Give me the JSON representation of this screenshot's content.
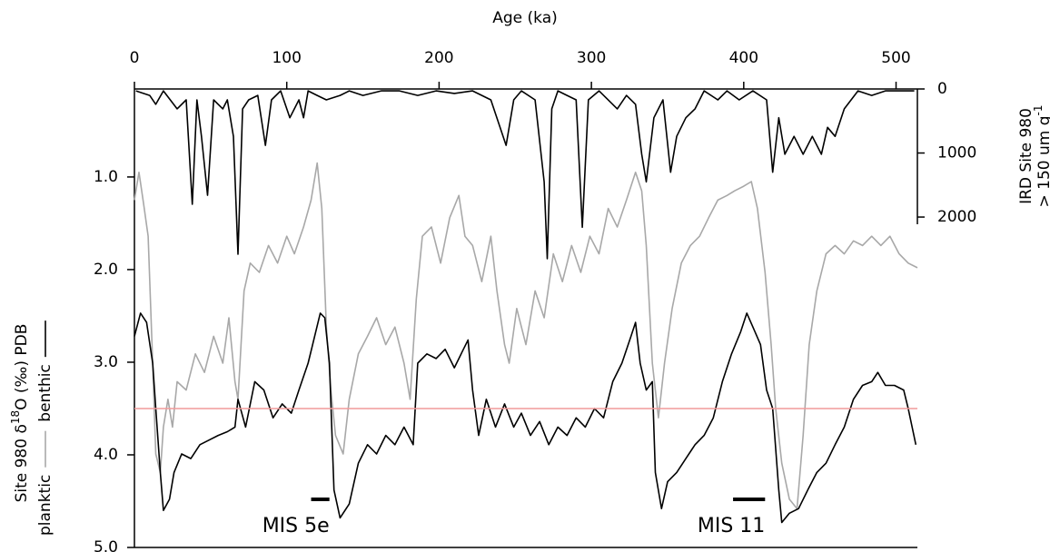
{
  "chart_data": {
    "type": "line",
    "x_label": "Age (ka)",
    "y_label": [
      "Site 980 δ",
      "18",
      "O (‰) PDB"
    ],
    "y2_label": [
      "IRD Site 980",
      "> 150 um g",
      "-1"
    ],
    "xlim": [
      0,
      514
    ],
    "xticks": [
      0,
      100,
      200,
      300,
      400,
      500
    ],
    "ylim": [
      0.05,
      5.0
    ],
    "y_inverted": true,
    "yticks": [
      {
        "value": 1,
        "label": "1.0"
      },
      {
        "value": 2,
        "label": "2.0"
      },
      {
        "value": 3,
        "label": "3.0"
      },
      {
        "value": 4,
        "label": "4.0"
      },
      {
        "value": 5,
        "label": "5.0"
      }
    ],
    "y2lim": [
      0,
      7160
    ],
    "y2_inverted": true,
    "y2ticks": [
      0,
      1000,
      2000
    ],
    "hline": {
      "value": 3.5,
      "color": "#f19a9a"
    },
    "series": [
      {
        "name": "planktic",
        "color": "#a8a8a8",
        "legend": true,
        "x": [
          0,
          3,
          6,
          9,
          12,
          14,
          17,
          19,
          22,
          25,
          28,
          34,
          40,
          46,
          52,
          58,
          62,
          66,
          68,
          72,
          76,
          82,
          88,
          94,
          100,
          105,
          111,
          116,
          120,
          123,
          126,
          129,
          132,
          137,
          141,
          147,
          153,
          159,
          165,
          171,
          177,
          181,
          185,
          189,
          195,
          201,
          207,
          213,
          217,
          222,
          228,
          234,
          238,
          243,
          246,
          251,
          257,
          263,
          269,
          275,
          281,
          287,
          293,
          299,
          305,
          311,
          317,
          323,
          329,
          333,
          336,
          340,
          344,
          348,
          353,
          359,
          365,
          371,
          377,
          383,
          389,
          394,
          400,
          405,
          409,
          414,
          418,
          421,
          425,
          430,
          435,
          439,
          443,
          448,
          454,
          460,
          466,
          472,
          478,
          484,
          490,
          496,
          502,
          508,
          514
        ],
        "values": [
          1.25,
          0.95,
          1.29,
          1.64,
          3.01,
          3.99,
          4.19,
          3.7,
          3.4,
          3.7,
          3.21,
          3.3,
          2.91,
          3.11,
          2.72,
          3.01,
          2.52,
          3.21,
          3.4,
          2.23,
          1.93,
          2.03,
          1.74,
          1.93,
          1.64,
          1.83,
          1.54,
          1.25,
          0.85,
          1.34,
          2.62,
          3.3,
          3.79,
          3.99,
          3.4,
          2.91,
          2.72,
          2.52,
          2.81,
          2.62,
          3.01,
          3.4,
          2.32,
          1.64,
          1.54,
          1.93,
          1.44,
          1.2,
          1.64,
          1.74,
          2.13,
          1.64,
          2.23,
          2.81,
          3.01,
          2.42,
          2.81,
          2.23,
          2.52,
          1.83,
          2.13,
          1.74,
          2.03,
          1.64,
          1.83,
          1.34,
          1.54,
          1.25,
          0.95,
          1.15,
          1.74,
          3.01,
          3.6,
          3.01,
          2.42,
          1.93,
          1.74,
          1.64,
          1.44,
          1.25,
          1.2,
          1.15,
          1.1,
          1.05,
          1.34,
          2.03,
          2.81,
          3.5,
          4.09,
          4.48,
          4.58,
          3.79,
          2.81,
          2.23,
          1.83,
          1.74,
          1.83,
          1.69,
          1.74,
          1.64,
          1.74,
          1.64,
          1.83,
          1.93,
          1.98
        ]
      },
      {
        "name": "benthic",
        "color": "#000000",
        "legend": true,
        "x": [
          0,
          4,
          8,
          12,
          14,
          17,
          19,
          23,
          26,
          31,
          37,
          43,
          49,
          55,
          61,
          66,
          68,
          73,
          79,
          85,
          91,
          97,
          103,
          108,
          114,
          117,
          122,
          125,
          128,
          131,
          135,
          141,
          147,
          153,
          159,
          165,
          171,
          177,
          183,
          186,
          192,
          198,
          204,
          210,
          216,
          219,
          222,
          226,
          231,
          237,
          243,
          249,
          254,
          260,
          266,
          272,
          278,
          284,
          290,
          296,
          302,
          308,
          314,
          320,
          326,
          329,
          332,
          336,
          340,
          342,
          346,
          350,
          356,
          362,
          368,
          374,
          380,
          386,
          392,
          398,
          402,
          406,
          411,
          415,
          419,
          423,
          425,
          430,
          436,
          442,
          448,
          454,
          460,
          466,
          472,
          478,
          484,
          488,
          493,
          499,
          505,
          508,
          513
        ],
        "values": [
          2.72,
          2.47,
          2.57,
          3.01,
          3.5,
          4.19,
          4.6,
          4.48,
          4.19,
          3.99,
          4.04,
          3.89,
          3.84,
          3.79,
          3.75,
          3.7,
          3.4,
          3.7,
          3.21,
          3.3,
          3.6,
          3.45,
          3.55,
          3.3,
          3.01,
          2.81,
          2.47,
          2.52,
          3.01,
          4.38,
          4.68,
          4.53,
          4.09,
          3.89,
          3.99,
          3.79,
          3.89,
          3.7,
          3.89,
          3.01,
          2.91,
          2.96,
          2.86,
          3.06,
          2.86,
          2.76,
          3.3,
          3.79,
          3.4,
          3.7,
          3.45,
          3.7,
          3.55,
          3.79,
          3.64,
          3.89,
          3.7,
          3.79,
          3.6,
          3.7,
          3.5,
          3.6,
          3.21,
          3.01,
          2.72,
          2.57,
          3.01,
          3.3,
          3.21,
          4.19,
          4.58,
          4.29,
          4.19,
          4.04,
          3.89,
          3.79,
          3.6,
          3.21,
          2.91,
          2.67,
          2.47,
          2.62,
          2.81,
          3.3,
          3.5,
          4.38,
          4.73,
          4.63,
          4.58,
          4.38,
          4.19,
          4.09,
          3.89,
          3.7,
          3.4,
          3.25,
          3.21,
          3.11,
          3.25,
          3.25,
          3.3,
          3.5,
          3.89
        ]
      },
      {
        "name": "IRD",
        "color": "#000000",
        "axis": "y2",
        "legend": false,
        "x": [
          1,
          10,
          14,
          19,
          28,
          34,
          38,
          41,
          44,
          48,
          52,
          58,
          61,
          65,
          68,
          71,
          75,
          81,
          86,
          90,
          96,
          102,
          108,
          111,
          114,
          120,
          126,
          135,
          141,
          150,
          162,
          174,
          186,
          198,
          210,
          222,
          234,
          244,
          249,
          254,
          263,
          269,
          271,
          274,
          278,
          284,
          290,
          294,
          298,
          305,
          317,
          323,
          329,
          333,
          336,
          341,
          347,
          352,
          356,
          362,
          368,
          374,
          383,
          389,
          397,
          406,
          415,
          419,
          423,
          427,
          433,
          439,
          445,
          451,
          455,
          460,
          466,
          475,
          484,
          493,
          502,
          512
        ],
        "values": [
          30,
          100,
          240,
          30,
          310,
          170,
          1800,
          170,
          740,
          1660,
          170,
          310,
          170,
          740,
          2580,
          310,
          170,
          100,
          880,
          170,
          30,
          450,
          170,
          450,
          30,
          100,
          170,
          100,
          30,
          100,
          30,
          30,
          100,
          30,
          70,
          30,
          170,
          880,
          170,
          30,
          170,
          1450,
          2650,
          310,
          30,
          100,
          170,
          2160,
          170,
          30,
          310,
          100,
          240,
          1020,
          1450,
          450,
          170,
          1300,
          740,
          450,
          310,
          30,
          170,
          30,
          170,
          30,
          170,
          1300,
          450,
          1020,
          740,
          1020,
          740,
          1020,
          600,
          740,
          310,
          30,
          100,
          30,
          30,
          30
        ]
      }
    ],
    "annotations": [
      {
        "text": "MIS 5e",
        "x": [
          116,
          128
        ],
        "y": 4.48
      },
      {
        "text": "MIS 11",
        "x": [
          393,
          414
        ],
        "y": 4.48
      }
    ]
  }
}
